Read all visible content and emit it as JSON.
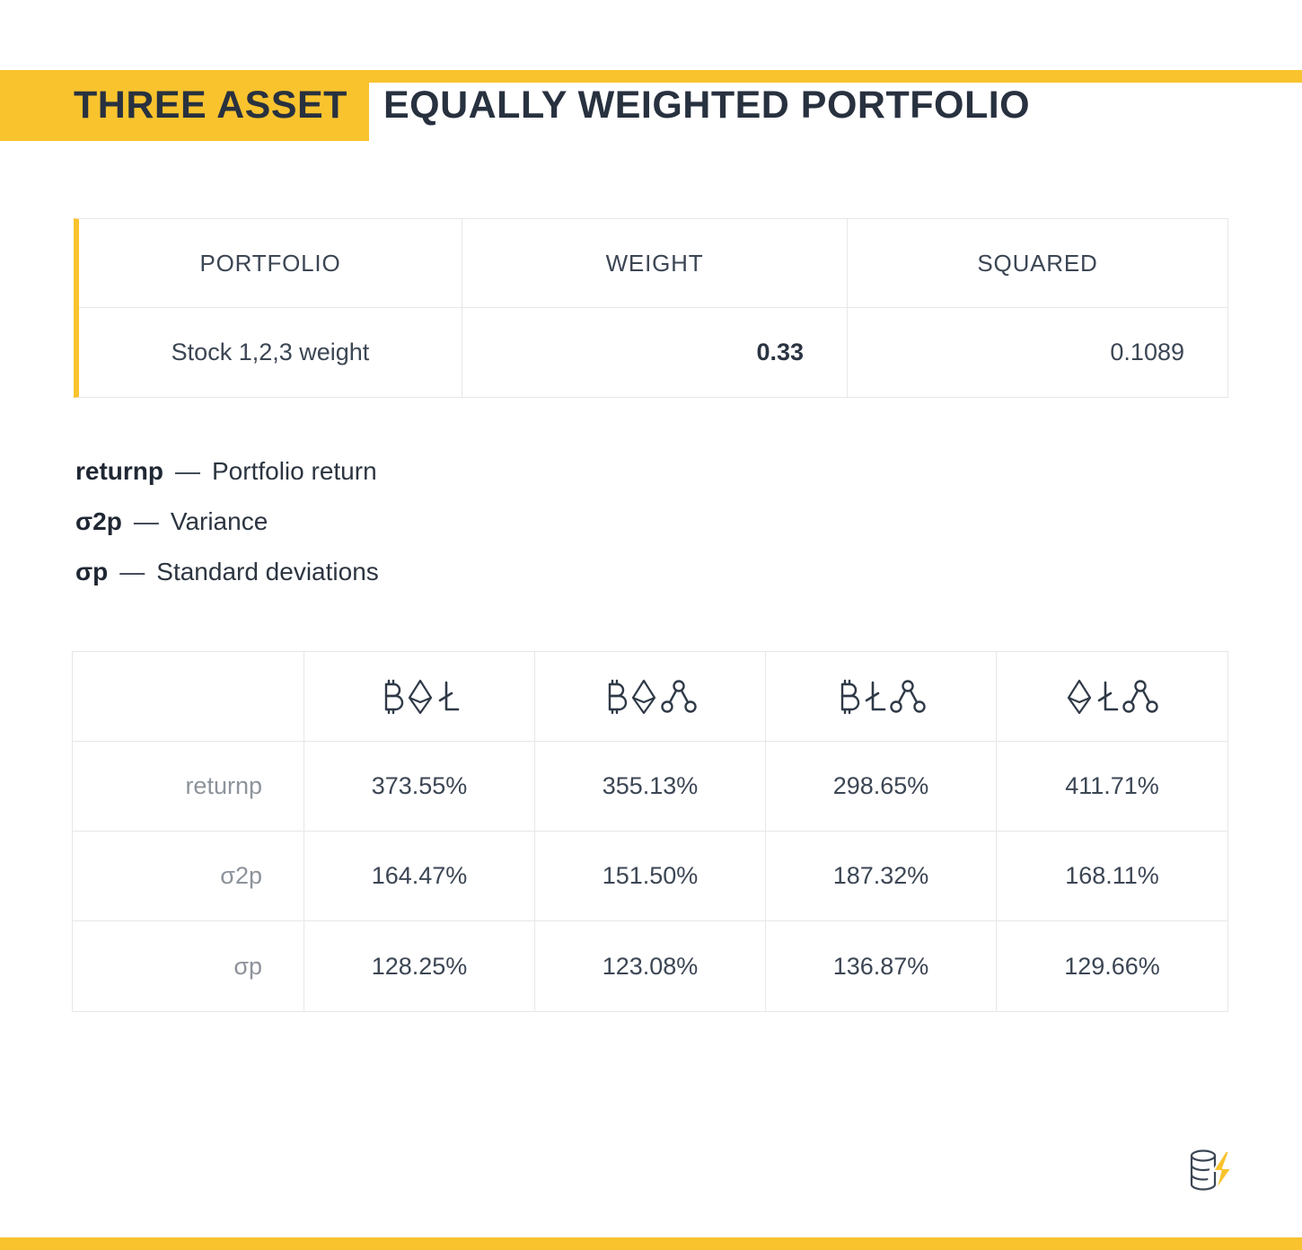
{
  "accent_color": "#F9C32E",
  "header": {
    "title_highlight": "THREE ASSET",
    "title_rest": "EQUALLY WEIGHTED PORTFOLIO"
  },
  "weights_table": {
    "headers": [
      "PORTFOLIO",
      "WEIGHT",
      "SQUARED"
    ],
    "row": {
      "portfolio": "Stock 1,2,3 weight",
      "weight": "0.33",
      "squared": "0.1089"
    }
  },
  "legend": {
    "items": [
      {
        "term": "returnp",
        "separator": "—",
        "definition": "Portfolio return"
      },
      {
        "term": "σ2p",
        "separator": "—",
        "definition": "Variance"
      },
      {
        "term": "σp",
        "separator": "—",
        "definition": "Standard deviations"
      }
    ]
  },
  "metrics_table": {
    "columns": [
      {
        "name": "btc-eth-ltc",
        "icons": [
          "btc",
          "eth",
          "ltc"
        ]
      },
      {
        "name": "btc-eth-xrp",
        "icons": [
          "btc",
          "eth",
          "xrp"
        ]
      },
      {
        "name": "btc-ltc-xrp",
        "icons": [
          "btc",
          "ltc",
          "xrp"
        ]
      },
      {
        "name": "eth-ltc-xrp",
        "icons": [
          "eth",
          "ltc",
          "xrp"
        ]
      }
    ],
    "rows": [
      {
        "label": "returnp",
        "values": [
          "373.55%",
          "355.13%",
          "298.65%",
          "411.71%"
        ]
      },
      {
        "label": "σ2p",
        "values": [
          "164.47%",
          "151.50%",
          "187.32%",
          "168.11%"
        ]
      },
      {
        "label": "σp",
        "values": [
          "128.25%",
          "123.08%",
          "136.87%",
          "129.66%"
        ]
      }
    ]
  },
  "chart_data": [
    {
      "type": "table",
      "title": "THREE ASSET EQUALLY WEIGHTED PORTFOLIO",
      "columns": [
        "PORTFOLIO",
        "WEIGHT",
        "SQUARED"
      ],
      "rows": [
        [
          "Stock 1,2,3 weight",
          0.33,
          0.1089
        ]
      ]
    },
    {
      "type": "table",
      "columns": [
        "",
        "BTC+ETH+LTC",
        "BTC+ETH+XRP",
        "BTC+LTC+XRP",
        "ETH+LTC+XRP"
      ],
      "rows": [
        [
          "returnp",
          "373.55%",
          "355.13%",
          "298.65%",
          "411.71%"
        ],
        [
          "σ2p",
          "164.47%",
          "151.50%",
          "187.32%",
          "168.11%"
        ],
        [
          "σp",
          "128.25%",
          "123.08%",
          "136.87%",
          "129.66%"
        ]
      ]
    }
  ]
}
